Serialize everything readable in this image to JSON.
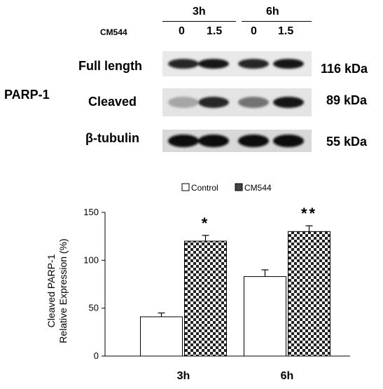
{
  "blot": {
    "time_labels": [
      "3h",
      "6h"
    ],
    "treatment_label": "CM544",
    "doses": [
      "0",
      "1.5",
      "0",
      "1.5"
    ],
    "protein_label": "PARP-1",
    "bands": [
      {
        "label": "Full length",
        "kda": "116 kDa",
        "intensity": [
          0.85,
          0.9,
          0.85,
          0.9
        ]
      },
      {
        "label": "Cleaved",
        "kda": "89 kDa",
        "intensity": [
          0.35,
          0.85,
          0.55,
          0.9
        ]
      },
      {
        "label": "β-tubulin",
        "kda": "55 kDa",
        "intensity": [
          0.95,
          0.95,
          0.95,
          0.95
        ]
      }
    ]
  },
  "chart_data": {
    "type": "bar",
    "categories": [
      "3h",
      "6h"
    ],
    "series": [
      {
        "name": "Control",
        "values": [
          41,
          83
        ],
        "errors": [
          4,
          7
        ],
        "pattern": "white"
      },
      {
        "name": "CM544",
        "values": [
          120,
          130
        ],
        "errors": [
          6,
          6
        ],
        "pattern": "checker"
      }
    ],
    "significance": [
      "*",
      "**"
    ],
    "ylabel_line1": "Cleaved PARP-1",
    "ylabel_line2": "Relative Expression (%)",
    "yticks": [
      0,
      50,
      100,
      150
    ],
    "ylim": [
      0,
      150
    ],
    "legend_position": "top"
  }
}
